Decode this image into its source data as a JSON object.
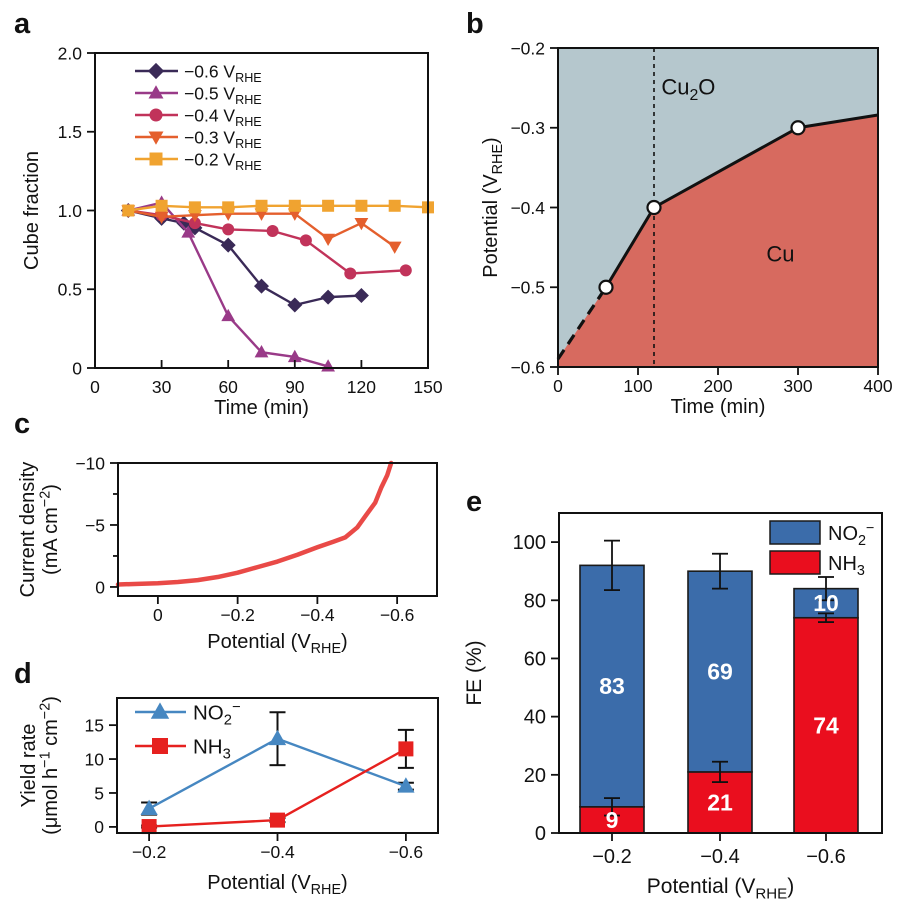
{
  "figure": {
    "background": "#ffffff"
  },
  "chart_data": [
    {
      "panel_letter": "a",
      "type": "line",
      "xlabel": "Time (min)",
      "ylabel": "Cube fraction",
      "xlim": [
        0,
        150
      ],
      "ylim": [
        0,
        2.0
      ],
      "grid": false,
      "legend_position": "top-left",
      "xticks": [
        {
          "v": 0,
          "label": "0"
        },
        {
          "v": 30,
          "label": "30"
        },
        {
          "v": 60,
          "label": "60"
        },
        {
          "v": 90,
          "label": "90"
        },
        {
          "v": 120,
          "label": "120"
        },
        {
          "v": 150,
          "label": "150"
        }
      ],
      "yticks": [
        {
          "v": 0,
          "label": "0"
        },
        {
          "v": 0.5,
          "label": "0.5"
        },
        {
          "v": 1.0,
          "label": "1.0"
        },
        {
          "v": 1.5,
          "label": "1.5"
        },
        {
          "v": 2.0,
          "label": "2.0"
        }
      ],
      "series": [
        {
          "name": "−0.6 V_{RHE}",
          "color": "#3a2a57",
          "marker": "diamond",
          "x": [
            15,
            30,
            40,
            45,
            60,
            75,
            90,
            105,
            120
          ],
          "y": [
            1.0,
            0.95,
            0.92,
            0.89,
            0.78,
            0.52,
            0.4,
            0.45,
            0.46
          ]
        },
        {
          "name": "−0.5 V_{RHE}",
          "color": "#993a88",
          "marker": "triangle-up",
          "x": [
            15,
            30,
            42,
            60,
            75,
            90,
            105
          ],
          "y": [
            1.0,
            1.05,
            0.86,
            0.33,
            0.1,
            0.07,
            0.01
          ]
        },
        {
          "name": "−0.4 V_{RHE}",
          "color": "#c1335a",
          "marker": "circle",
          "x": [
            15,
            30,
            45,
            60,
            80,
            95,
            115,
            140
          ],
          "y": [
            1.0,
            0.97,
            0.92,
            0.88,
            0.87,
            0.81,
            0.6,
            0.62
          ]
        },
        {
          "name": "−0.3 V_{RHE}",
          "color": "#e45f2d",
          "marker": "triangle-down",
          "x": [
            15,
            30,
            45,
            60,
            75,
            90,
            105,
            120,
            135
          ],
          "y": [
            1.0,
            0.96,
            0.97,
            0.98,
            0.98,
            0.98,
            0.82,
            0.92,
            0.77
          ]
        },
        {
          "name": "−0.2 V_{RHE}",
          "color": "#f0a330",
          "marker": "square",
          "x": [
            15,
            30,
            45,
            60,
            75,
            90,
            105,
            120,
            135,
            150
          ],
          "y": [
            1.0,
            1.03,
            1.02,
            1.02,
            1.03,
            1.03,
            1.03,
            1.03,
            1.03,
            1.02
          ]
        }
      ]
    },
    {
      "panel_letter": "b",
      "type": "phase",
      "xlabel": "Time (min)",
      "ylabel": "Potential (V_{RHE})",
      "xlim": [
        0,
        400
      ],
      "ylim": [
        -0.6,
        -0.2
      ],
      "xticks": [
        {
          "v": 0,
          "label": "0"
        },
        {
          "v": 100,
          "label": "100"
        },
        {
          "v": 200,
          "label": "200"
        },
        {
          "v": 300,
          "label": "300"
        },
        {
          "v": 400,
          "label": "400"
        }
      ],
      "yticks": [
        {
          "v": -0.2,
          "label": "−0.2"
        },
        {
          "v": -0.3,
          "label": "−0.3"
        },
        {
          "v": -0.4,
          "label": "−0.4"
        },
        {
          "v": -0.5,
          "label": "−0.5"
        },
        {
          "v": -0.6,
          "label": "−0.6"
        }
      ],
      "regions": [
        {
          "name": "Cu_{2}O",
          "color": "#b5c7cd",
          "label_x": 163,
          "label_y": -0.258
        },
        {
          "name": "Cu",
          "color": "#d76a5f",
          "label_x": 278,
          "label_y": -0.468
        }
      ],
      "boundary": {
        "x": [
          0,
          60,
          120,
          300,
          400
        ],
        "y": [
          -0.59,
          -0.5,
          -0.4,
          -0.3,
          -0.284
        ],
        "dashed_first_segment": true,
        "marker_points": [
          [
            60,
            -0.5
          ],
          [
            120,
            -0.4
          ],
          [
            300,
            -0.3
          ]
        ]
      },
      "vline_x": 120
    },
    {
      "panel_letter": "c",
      "type": "line",
      "xlabel": "Potential (V_{RHE})",
      "ylabel": "Current density",
      "ylabel2": "(mA cm^{−2})",
      "xlim": [
        0.1,
        -0.7
      ],
      "ylim": [
        0.73,
        -10
      ],
      "xticks": [
        {
          "v": 0,
          "label": "0"
        },
        {
          "v": -0.2,
          "label": "−0.2"
        },
        {
          "v": -0.4,
          "label": "−0.4"
        },
        {
          "v": -0.6,
          "label": "−0.6"
        }
      ],
      "yticks": [
        {
          "v": 0,
          "label": "0"
        },
        {
          "v": -5,
          "label": "−5"
        },
        {
          "v": -10,
          "label": "−10"
        }
      ],
      "yticks_minor": [
        -2.5,
        -7.5
      ],
      "series": [
        {
          "name": "LSV curve",
          "color": "#e94a47",
          "marker": "none",
          "width": 4.5,
          "x": [
            0.1,
            0.05,
            0.0,
            -0.05,
            -0.1,
            -0.15,
            -0.2,
            -0.25,
            -0.3,
            -0.35,
            -0.4,
            -0.44,
            -0.47,
            -0.5,
            -0.52,
            -0.545,
            -0.56,
            -0.575,
            -0.585
          ],
          "y": [
            -0.2,
            -0.25,
            -0.3,
            -0.4,
            -0.55,
            -0.8,
            -1.15,
            -1.6,
            -2.05,
            -2.6,
            -3.2,
            -3.65,
            -4.0,
            -4.8,
            -5.7,
            -6.8,
            -8.0,
            -9.0,
            -10.0
          ]
        }
      ]
    },
    {
      "panel_letter": "d",
      "type": "line",
      "xlabel": "Potential (V_{RHE})",
      "ylabel": "Yield rate",
      "ylabel2": "(μmol h^{−1} cm^{−2})",
      "xlim": [
        -0.15,
        -0.65
      ],
      "ylim": [
        -0.9,
        19
      ],
      "legend_position": "top-left",
      "xticks": [
        {
          "v": -0.2,
          "label": "−0.2"
        },
        {
          "v": -0.4,
          "label": "−0.4"
        },
        {
          "v": -0.6,
          "label": "−0.6"
        }
      ],
      "yticks": [
        {
          "v": 0,
          "label": "0"
        },
        {
          "v": 5,
          "label": "5"
        },
        {
          "v": 10,
          "label": "10"
        },
        {
          "v": 15,
          "label": "15"
        }
      ],
      "series": [
        {
          "name": "NO_{2}^{−}",
          "color": "#4687c1",
          "marker": "triangle-up",
          "x": [
            -0.2,
            -0.4,
            -0.6
          ],
          "y": [
            2.7,
            13.0,
            6.0
          ],
          "yerr": [
            0.9,
            3.9,
            0.5
          ]
        },
        {
          "name": "NH_{3}",
          "color": "#e6211f",
          "marker": "square",
          "x": [
            -0.2,
            -0.4,
            -0.6
          ],
          "y": [
            0.05,
            1.0,
            11.5
          ],
          "yerr": [
            0.15,
            0.3,
            2.8
          ]
        }
      ]
    },
    {
      "panel_letter": "e",
      "type": "stacked-bar",
      "xlabel": "Potential (V_{RHE})",
      "ylabel": "FE (%)",
      "ylim": [
        0,
        110
      ],
      "categories": [
        "−0.2",
        "−0.4",
        "−0.6"
      ],
      "yticks": [
        {
          "v": 0,
          "label": "0"
        },
        {
          "v": 20,
          "label": "20"
        },
        {
          "v": 40,
          "label": "40"
        },
        {
          "v": 60,
          "label": "60"
        },
        {
          "v": 80,
          "label": "80"
        },
        {
          "v": 100,
          "label": "100"
        }
      ],
      "stack": [
        {
          "name": "NH_{3}",
          "color": "#ea0e1e",
          "values": [
            9,
            21,
            74
          ],
          "errors": [
            3,
            3.5,
            1.5
          ],
          "value_labels": [
            "9",
            "21",
            "74"
          ]
        },
        {
          "name": "NO_{2}^{−}",
          "color": "#3b6caa",
          "values": [
            83,
            69,
            10
          ],
          "value_labels": [
            "83",
            "69",
            "10"
          ]
        }
      ],
      "total_errors": [
        8.5,
        6,
        4
      ],
      "legend": [
        {
          "label": "NO_{2}^{−}",
          "color": "#3b6caa"
        },
        {
          "label": "NH_{3}",
          "color": "#ea0e1e"
        }
      ]
    }
  ]
}
